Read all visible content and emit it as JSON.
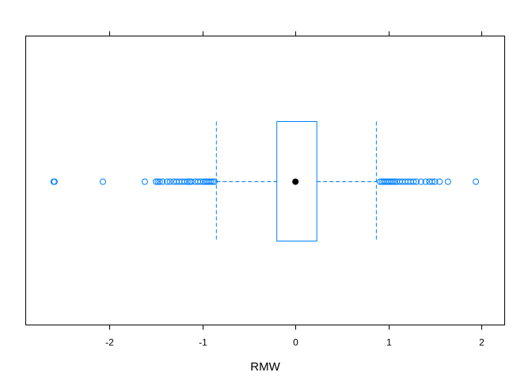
{
  "chart_data": {
    "type": "box",
    "orientation": "horizontal",
    "xlabel": "RMW",
    "xlim": [
      -2.9,
      2.25
    ],
    "ticks": [
      {
        "value": -2,
        "label": "-2"
      },
      {
        "value": -1,
        "label": "-1"
      },
      {
        "value": 0,
        "label": "0"
      },
      {
        "value": 1,
        "label": "1"
      },
      {
        "value": 2,
        "label": "2"
      }
    ],
    "box": {
      "whisker_low": -0.85,
      "q1": -0.2,
      "median": 0.0,
      "q3": 0.23,
      "whisker_high": 0.87
    },
    "outliers": [
      -2.6,
      -2.59,
      -2.07,
      -1.62,
      -1.5,
      -1.48,
      -1.46,
      -1.43,
      -1.38,
      -1.35,
      -1.31,
      -1.28,
      -1.25,
      -1.22,
      -1.19,
      -1.16,
      -1.14,
      -1.12,
      -1.08,
      -1.05,
      -1.02,
      -0.99,
      -0.97,
      -0.95,
      -0.93,
      -0.91,
      -0.89,
      -0.87,
      0.91,
      0.93,
      0.95,
      0.97,
      0.99,
      1.01,
      1.03,
      1.05,
      1.07,
      1.09,
      1.12,
      1.15,
      1.18,
      1.21,
      1.24,
      1.27,
      1.3,
      1.35,
      1.4,
      1.44,
      1.47,
      1.5,
      1.55,
      1.64,
      1.94
    ],
    "colors": {
      "box": "#0080ff",
      "median": "#000000",
      "frame": "#000000"
    }
  }
}
